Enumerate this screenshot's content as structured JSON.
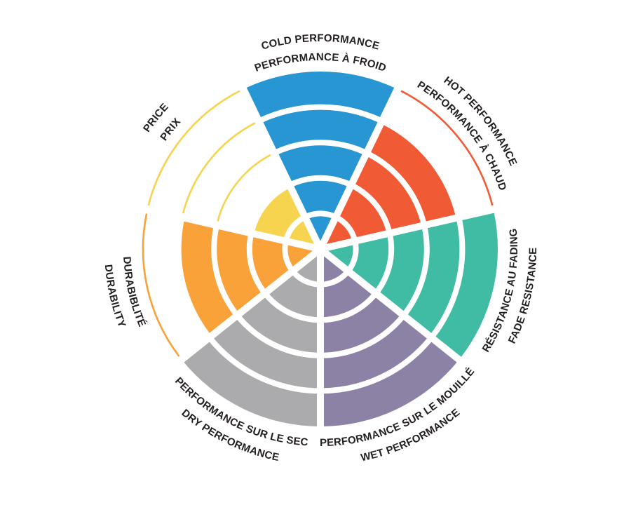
{
  "chart_data": {
    "type": "radial-sector-wheel",
    "description": "Tire performance rating wheel, 7 criteria rated on 5 concentric rings; unfilled ring levels shown as thin colored outline arcs",
    "rings": 5,
    "max_value": 5,
    "direction": "clockwise",
    "first_segment_center_deg": -90,
    "background": "#ffffff",
    "text_color": "#231f20",
    "separator_color": "#ffffff",
    "segments": [
      {
        "id": "cold",
        "label_en": "COLD PERFORMANCE",
        "label_fr": "PERFORMANCE À FROID",
        "value": 5,
        "color": "#2796d2"
      },
      {
        "id": "hot",
        "label_en": "HOT PERFORMANCE",
        "label_fr": "PERFORMANCE À CHAUD",
        "value": 4,
        "color": "#f05b35"
      },
      {
        "id": "fade",
        "label_en": "FADE RESISTANCE",
        "label_fr": "RÉSISTANCE AU FADING",
        "value": 5,
        "color": "#41bca4"
      },
      {
        "id": "wet",
        "label_en": "WET PERFORMANCE",
        "label_fr": "PERFORMANCE SUR LE MOUILLÉ",
        "value": 5,
        "color": "#8b82a6"
      },
      {
        "id": "dry",
        "label_en": "DRY PERFORMANCE",
        "label_fr": "PERFORMANCE SUR LE SEC",
        "value": 5,
        "color": "#ababad"
      },
      {
        "id": "durability",
        "label_en": "DURABILITY",
        "label_fr": "DURABIBLITÉ",
        "value": 4,
        "color": "#f8a239"
      },
      {
        "id": "price",
        "label_en": "PRICE",
        "label_fr": "PRIX",
        "value": 2,
        "color": "#f6d44f"
      }
    ]
  }
}
